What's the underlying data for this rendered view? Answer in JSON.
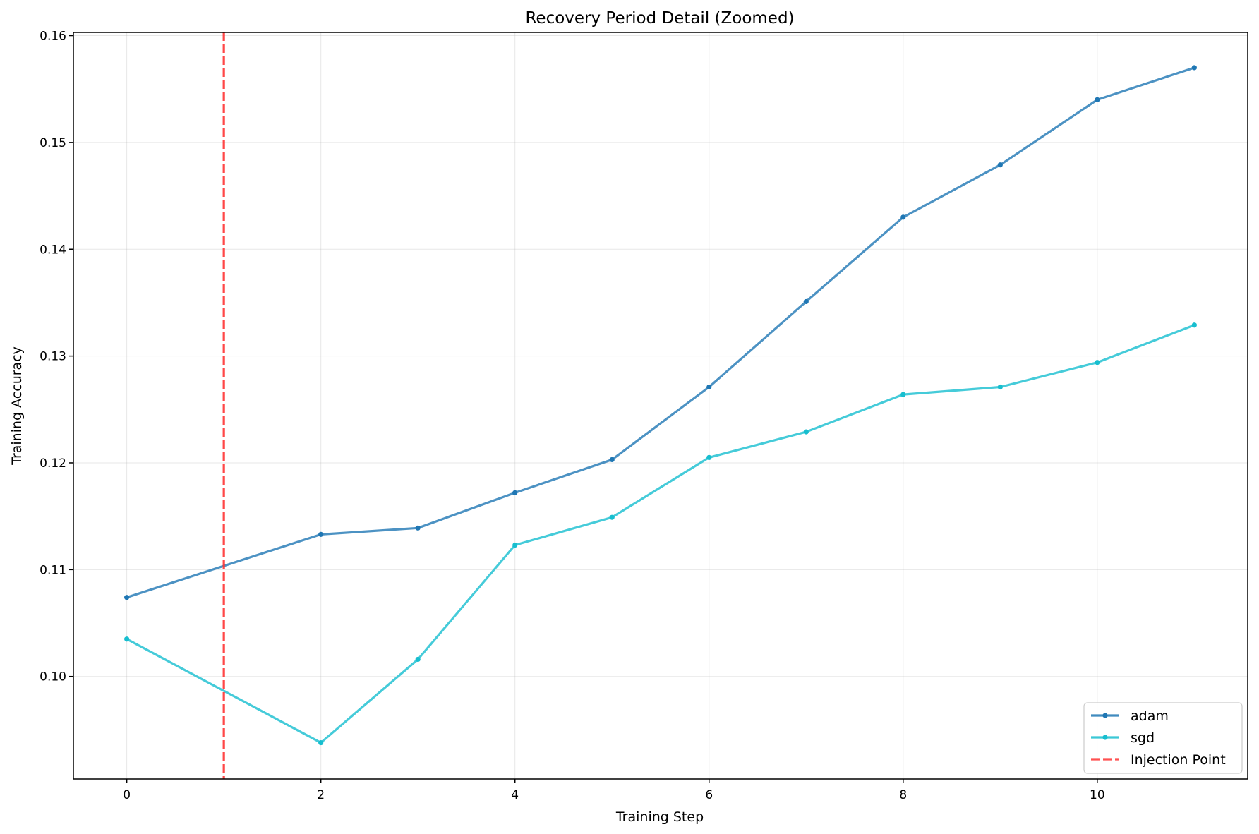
{
  "chart_data": {
    "type": "line",
    "title": "Recovery Period Detail (Zoomed)",
    "xlabel": "Training Step",
    "ylabel": "Training Accuracy",
    "xlim": [
      -0.55,
      11.55
    ],
    "ylim": [
      0.0904,
      0.1603
    ],
    "x_ticks": [
      0,
      2,
      4,
      6,
      8,
      10
    ],
    "x_tick_labels": [
      "0",
      "2",
      "4",
      "6",
      "8",
      "10"
    ],
    "y_ticks": [
      0.1,
      0.11,
      0.12,
      0.13,
      0.14,
      0.15,
      0.16
    ],
    "y_tick_labels": [
      "0.10",
      "0.11",
      "0.12",
      "0.13",
      "0.14",
      "0.15",
      "0.16"
    ],
    "grid": true,
    "legend_position": "lower-right",
    "series": [
      {
        "name": "adam",
        "color": "#1f77b4",
        "x": [
          0,
          2,
          3,
          4,
          5,
          6,
          7,
          8,
          9,
          10,
          11
        ],
        "values": [
          0.1074,
          0.1133,
          0.1139,
          0.1172,
          0.1203,
          0.1271,
          0.1351,
          0.143,
          0.1479,
          0.154,
          0.157
        ]
      },
      {
        "name": "sgd",
        "color": "#17becf",
        "x": [
          0,
          2,
          3,
          4,
          5,
          6,
          7,
          8,
          9,
          10,
          11
        ],
        "values": [
          0.1035,
          0.0938,
          0.1016,
          0.1123,
          0.1149,
          0.1205,
          0.1229,
          0.1264,
          0.1271,
          0.1294,
          0.1329
        ]
      }
    ],
    "vline": {
      "name": "Injection Point",
      "x": 1,
      "color": "#ff3333",
      "style": "dashed"
    }
  }
}
